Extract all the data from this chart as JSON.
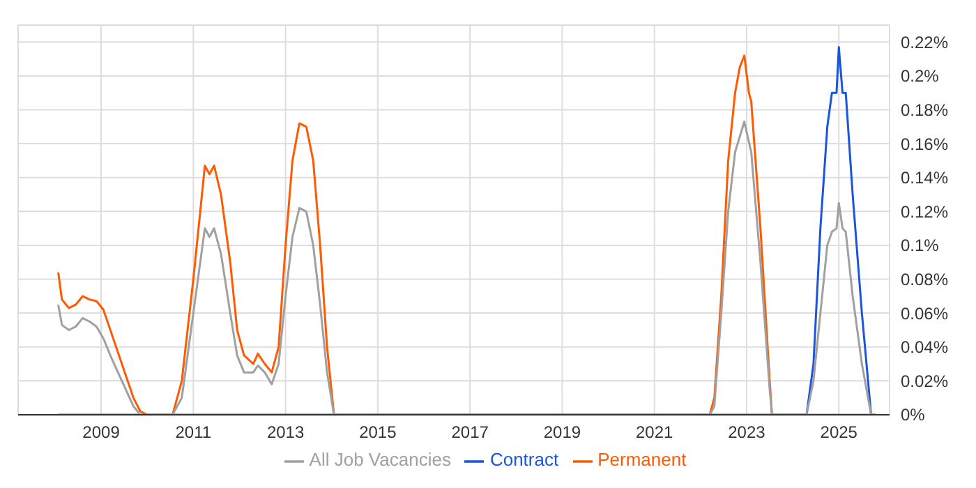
{
  "chart_data": {
    "type": "line",
    "xlim": [
      2007.2,
      2026.1
    ],
    "xticks": [
      2009,
      2011,
      2013,
      2015,
      2017,
      2019,
      2021,
      2023,
      2025
    ],
    "ylim": [
      0,
      0.23
    ],
    "yticks": [
      {
        "value": 0,
        "label": "0%"
      },
      {
        "value": 0.02,
        "label": "0.02%"
      },
      {
        "value": 0.04,
        "label": "0.04%"
      },
      {
        "value": 0.06,
        "label": "0.06%"
      },
      {
        "value": 0.08,
        "label": "0.08%"
      },
      {
        "value": 0.1,
        "label": "0.1%"
      },
      {
        "value": 0.12,
        "label": "0.12%"
      },
      {
        "value": 0.14,
        "label": "0.14%"
      },
      {
        "value": 0.16,
        "label": "0.16%"
      },
      {
        "value": 0.18,
        "label": "0.18%"
      },
      {
        "value": 0.2,
        "label": "0.2%"
      },
      {
        "value": 0.22,
        "label": "0.22%"
      }
    ],
    "grid": true,
    "legend": "bottom",
    "marker": "none",
    "line_style": "solid",
    "series": [
      {
        "name": "Permanent",
        "color": "#ff5a00",
        "x": [
          2008.07,
          2008.15,
          2008.3,
          2008.45,
          2008.6,
          2008.75,
          2008.9,
          2009.05,
          2009.2,
          2009.45,
          2009.7,
          2009.85,
          2010,
          2010.55,
          2010.75,
          2011,
          2011.15,
          2011.25,
          2011.35,
          2011.45,
          2011.6,
          2011.8,
          2011.95,
          2012.1,
          2012.3,
          2012.4,
          2012.55,
          2012.7,
          2012.85,
          2013,
          2013.15,
          2013.3,
          2013.45,
          2013.6,
          2013.75,
          2013.9,
          2014.05,
          2022.2,
          2022.3,
          2022.45,
          2022.6,
          2022.75,
          2022.85,
          2022.95,
          2023.05,
          2023.1,
          2023.3,
          2023.5,
          2023.55,
          2025.8
        ],
        "values": [
          0.084,
          0.068,
          0.063,
          0.065,
          0.07,
          0.068,
          0.067,
          0.062,
          0.05,
          0.03,
          0.01,
          0.002,
          0,
          0,
          0.02,
          0.08,
          0.12,
          0.147,
          0.142,
          0.147,
          0.13,
          0.09,
          0.05,
          0.035,
          0.03,
          0.036,
          0.03,
          0.025,
          0.04,
          0.1,
          0.15,
          0.172,
          0.17,
          0.15,
          0.1,
          0.04,
          0,
          0,
          0.01,
          0.07,
          0.15,
          0.19,
          0.205,
          0.212,
          0.19,
          0.185,
          0.11,
          0.02,
          0,
          0
        ]
      },
      {
        "name": "Contract",
        "color": "#1a56db",
        "x": [
          2008.07,
          2024.3,
          2024.45,
          2024.6,
          2024.75,
          2024.85,
          2024.95,
          2025,
          2025.08,
          2025.15,
          2025.3,
          2025.5,
          2025.7,
          2025.8
        ],
        "values": [
          0,
          0,
          0.03,
          0.11,
          0.17,
          0.19,
          0.19,
          0.217,
          0.19,
          0.19,
          0.13,
          0.06,
          0,
          0
        ]
      },
      {
        "name": "All Job Vacancies",
        "color": "#a0a0a0",
        "x": [
          2008.07,
          2008.15,
          2008.3,
          2008.45,
          2008.6,
          2008.75,
          2008.9,
          2009.05,
          2009.2,
          2009.45,
          2009.7,
          2009.85,
          2010.55,
          2010.75,
          2011,
          2011.15,
          2011.25,
          2011.35,
          2011.45,
          2011.6,
          2011.8,
          2011.95,
          2012.1,
          2012.3,
          2012.4,
          2012.55,
          2012.7,
          2012.85,
          2013,
          2013.15,
          2013.3,
          2013.45,
          2013.6,
          2013.75,
          2013.9,
          2014.05,
          2022.2,
          2022.3,
          2022.45,
          2022.6,
          2022.75,
          2022.95,
          2023.1,
          2023.3,
          2023.5,
          2023.55,
          2024.3,
          2024.45,
          2024.6,
          2024.75,
          2024.85,
          2024.95,
          2025,
          2025.08,
          2025.15,
          2025.3,
          2025.5,
          2025.7,
          2025.8
        ],
        "values": [
          0.065,
          0.053,
          0.05,
          0.052,
          0.057,
          0.055,
          0.052,
          0.045,
          0.035,
          0.02,
          0.005,
          0,
          0,
          0.01,
          0.06,
          0.09,
          0.11,
          0.105,
          0.11,
          0.095,
          0.06,
          0.035,
          0.025,
          0.025,
          0.029,
          0.025,
          0.018,
          0.03,
          0.07,
          0.105,
          0.122,
          0.12,
          0.1,
          0.065,
          0.025,
          0,
          0,
          0.005,
          0.06,
          0.12,
          0.155,
          0.173,
          0.155,
          0.09,
          0.015,
          0,
          0,
          0.02,
          0.06,
          0.1,
          0.108,
          0.11,
          0.125,
          0.11,
          0.108,
          0.07,
          0.03,
          0,
          0
        ]
      }
    ]
  }
}
